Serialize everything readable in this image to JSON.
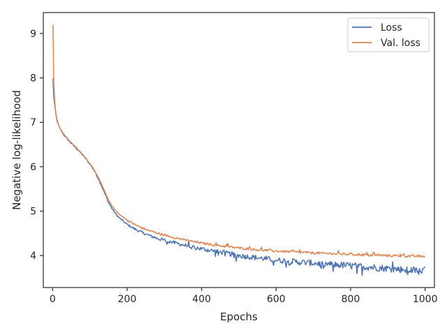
{
  "chart_data": {
    "type": "line",
    "xlabel": "Epochs",
    "ylabel": "Negative log-likelihood",
    "xlim": [
      -25,
      1025
    ],
    "ylim": [
      3.28,
      9.47
    ],
    "xticks": [
      0,
      200,
      400,
      600,
      800,
      1000
    ],
    "yticks": [
      4,
      5,
      6,
      7,
      8,
      9
    ],
    "grid": false,
    "legend_position": "top-right",
    "series": [
      {
        "name": "Loss",
        "color": "#4c72b0",
        "x": [
          1,
          3,
          6,
          10,
          15,
          20,
          30,
          40,
          50,
          60,
          70,
          80,
          90,
          100,
          110,
          120,
          130,
          140,
          150,
          160,
          170,
          180,
          190,
          200,
          220,
          240,
          260,
          280,
          300,
          350,
          400,
          450,
          500,
          550,
          600,
          650,
          700,
          750,
          800,
          850,
          900,
          950,
          1000
        ],
        "y": [
          7.98,
          7.6,
          7.35,
          7.1,
          6.95,
          6.85,
          6.72,
          6.62,
          6.53,
          6.45,
          6.36,
          6.27,
          6.17,
          6.06,
          5.94,
          5.78,
          5.6,
          5.4,
          5.2,
          5.05,
          4.93,
          4.84,
          4.77,
          4.7,
          4.6,
          4.52,
          4.45,
          4.39,
          4.34,
          4.24,
          4.15,
          4.08,
          4.0,
          3.95,
          3.9,
          3.86,
          3.83,
          3.8,
          3.77,
          3.74,
          3.71,
          3.68,
          3.65
        ],
        "noise": [
          0.02,
          0.02,
          0.02,
          0.02,
          0.02,
          0.02,
          0.02,
          0.02,
          0.02,
          0.02,
          0.02,
          0.02,
          0.02,
          0.02,
          0.02,
          0.02,
          0.02,
          0.02,
          0.02,
          0.02,
          0.02,
          0.02,
          0.02,
          0.02,
          0.03,
          0.03,
          0.03,
          0.04,
          0.04,
          0.04,
          0.05,
          0.05,
          0.06,
          0.06,
          0.06,
          0.07,
          0.07,
          0.07,
          0.08,
          0.08,
          0.08,
          0.08,
          0.08
        ]
      },
      {
        "name": "Val. loss",
        "color": "#dd8452",
        "x": [
          1,
          3,
          6,
          10,
          15,
          20,
          30,
          40,
          50,
          60,
          70,
          80,
          90,
          100,
          110,
          120,
          130,
          140,
          150,
          160,
          170,
          180,
          190,
          200,
          220,
          240,
          260,
          280,
          300,
          350,
          400,
          450,
          500,
          550,
          600,
          650,
          700,
          750,
          800,
          850,
          900,
          950,
          1000
        ],
        "y": [
          9.2,
          7.9,
          7.4,
          7.12,
          6.96,
          6.86,
          6.73,
          6.63,
          6.54,
          6.46,
          6.37,
          6.28,
          6.18,
          6.07,
          5.95,
          5.8,
          5.63,
          5.44,
          5.25,
          5.11,
          5.0,
          4.92,
          4.86,
          4.8,
          4.7,
          4.62,
          4.56,
          4.51,
          4.46,
          4.36,
          4.28,
          4.22,
          4.17,
          4.13,
          4.1,
          4.08,
          4.06,
          4.04,
          4.03,
          4.01,
          4.0,
          3.99,
          3.98
        ]
      }
    ]
  }
}
